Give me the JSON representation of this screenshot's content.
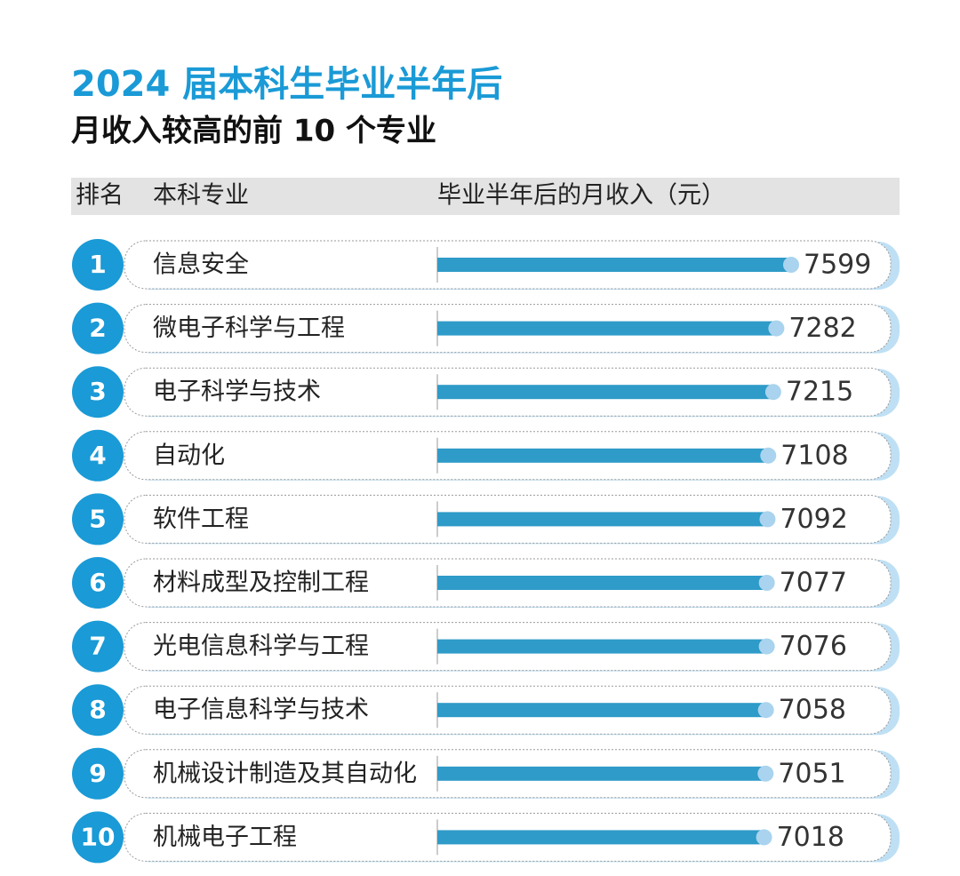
{
  "chart_data": {
    "type": "hbar",
    "title": "2024 届本科生毕业半年后",
    "subtitle": "月收入较高的前 10 个专业",
    "columns": [
      "排名",
      "本科专业",
      "毕业半年后的月收入（元）"
    ],
    "ranks": [
      1,
      2,
      3,
      4,
      5,
      6,
      7,
      8,
      9,
      10
    ],
    "categories": [
      "信息安全",
      "微电子科学与工程",
      "电子科学与技术",
      "自动化",
      "软件工程",
      "材料成型及控制工程",
      "光电信息科学与工程",
      "电子信息科学与技术",
      "机械设计制造及其自动化",
      "机械电子工程"
    ],
    "values": [
      7599,
      7282,
      7215,
      7108,
      7092,
      7077,
      7076,
      7058,
      7051,
      7018
    ],
    "color": "#2e9bc8",
    "accent": "#1a9ad6"
  }
}
